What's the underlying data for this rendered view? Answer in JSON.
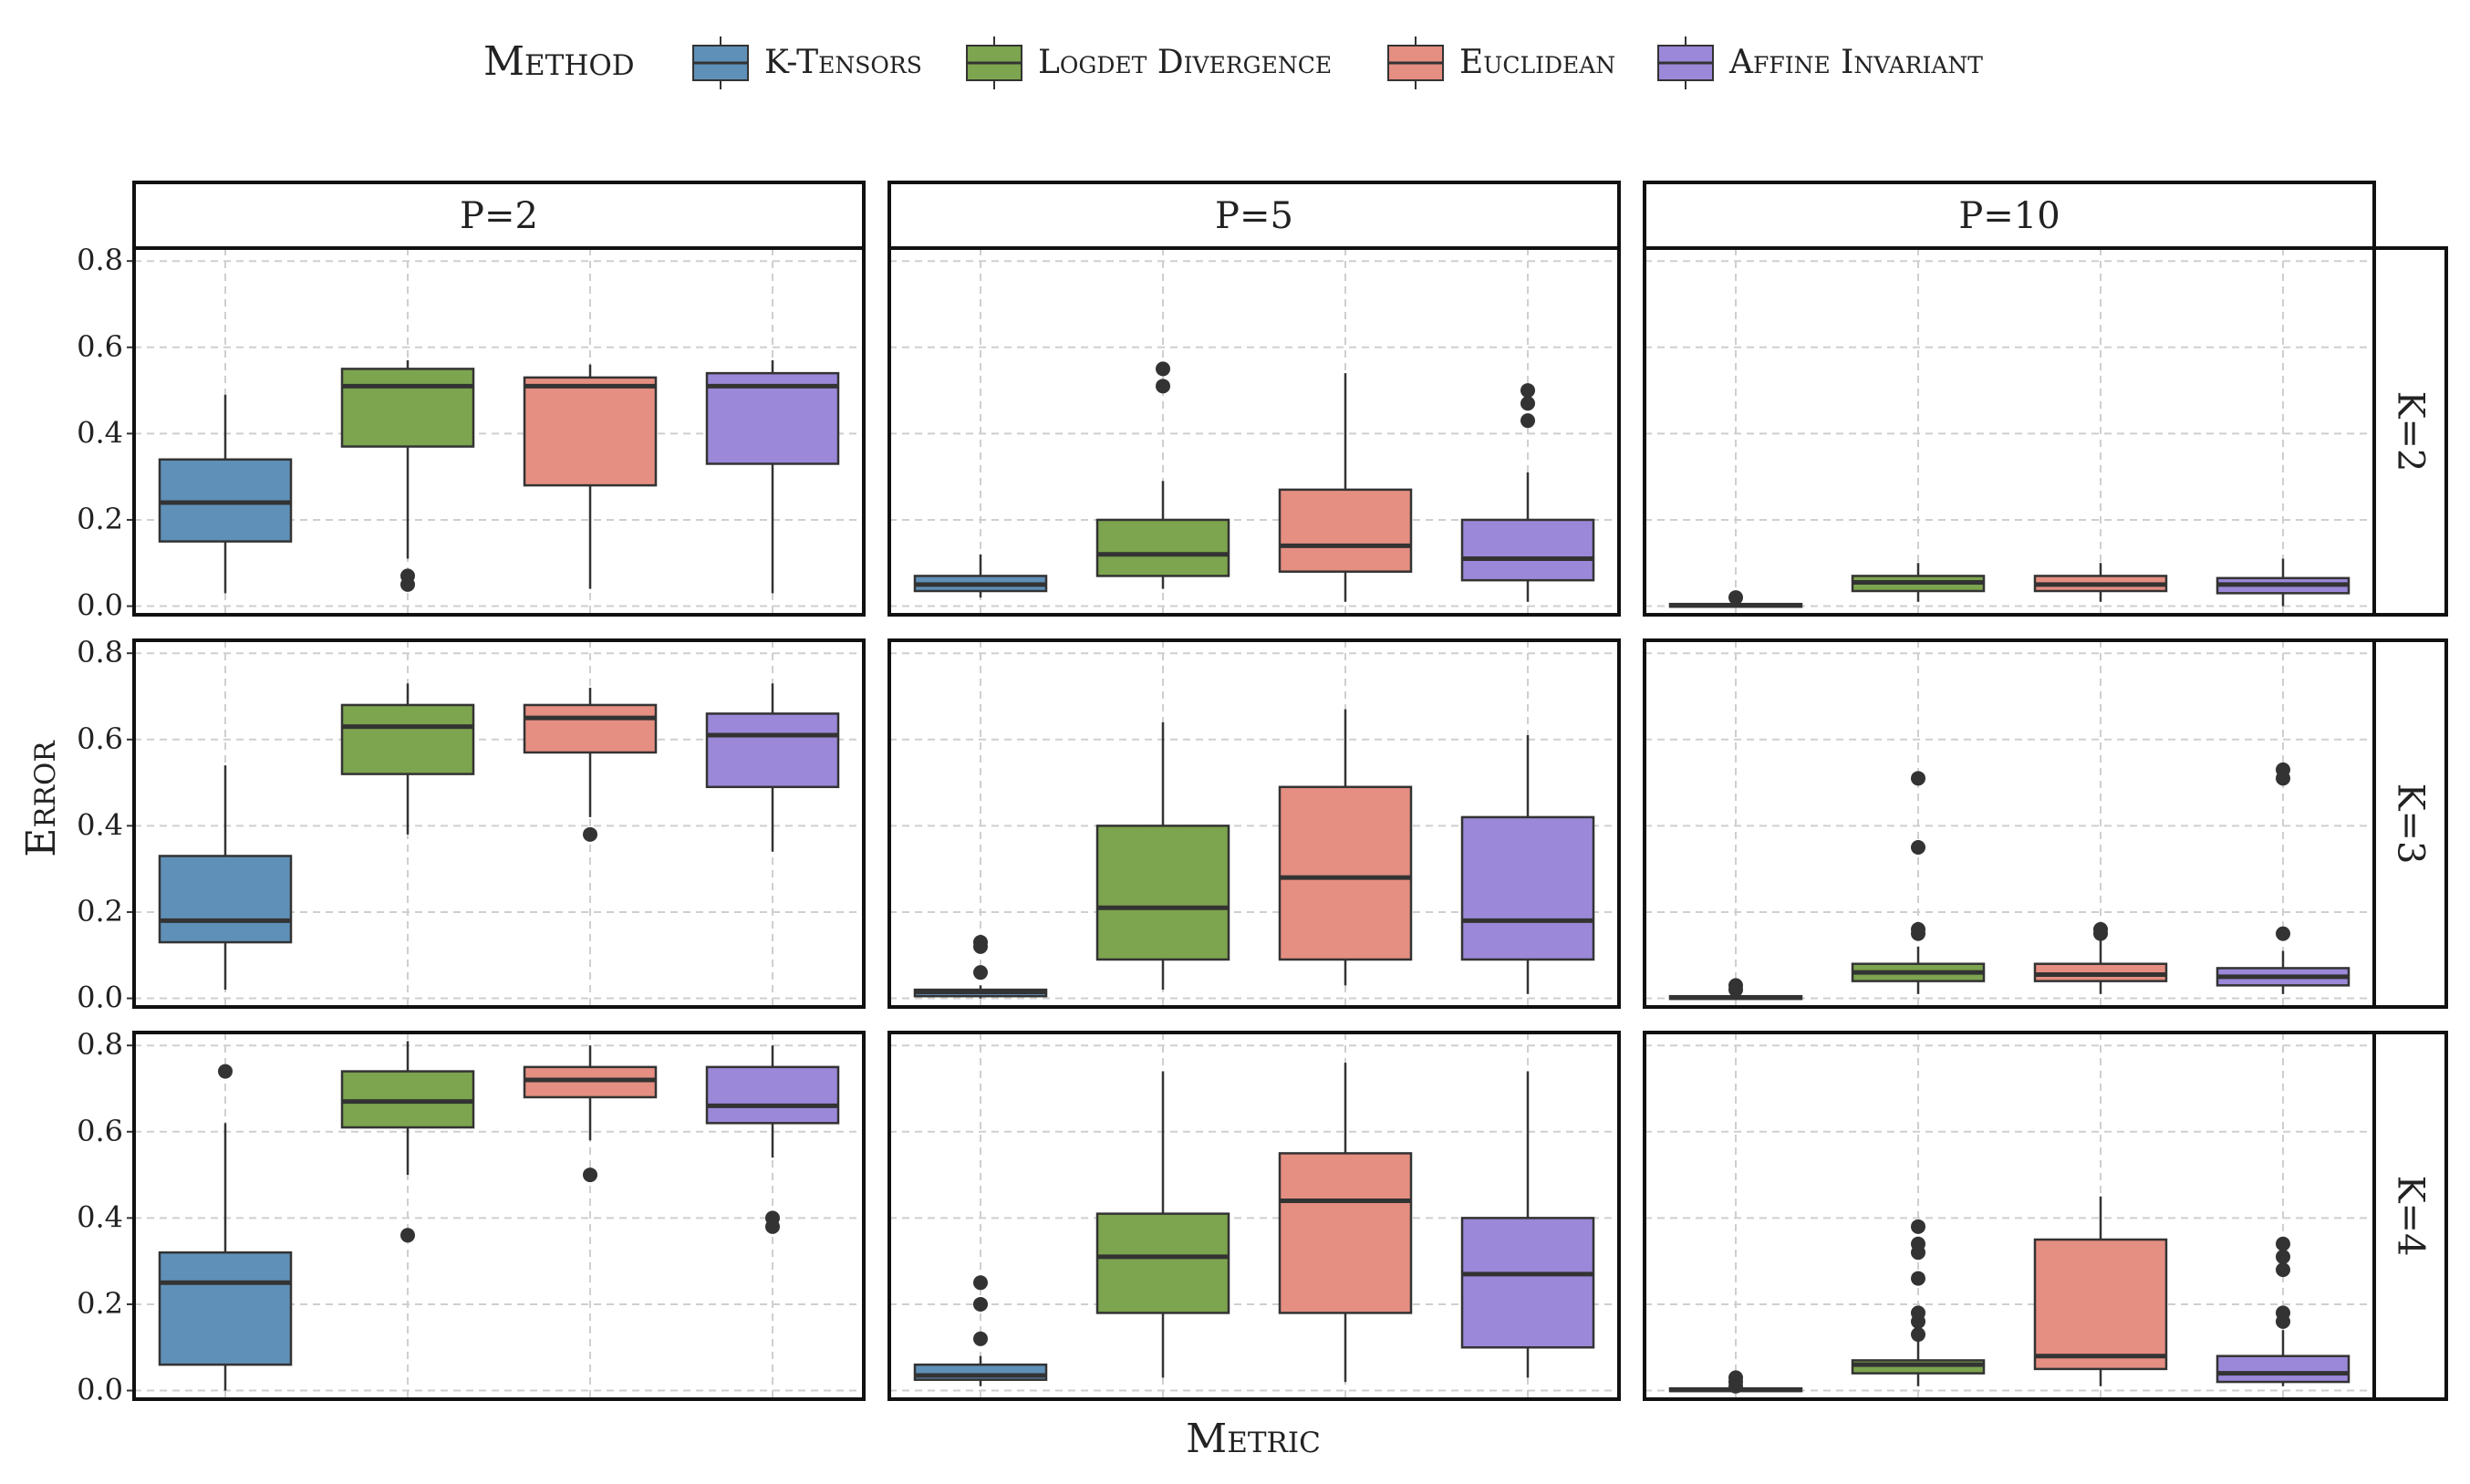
{
  "legend": {
    "title": "Method",
    "items": [
      {
        "label": "K-Tensors",
        "color": "#5f90b8"
      },
      {
        "label": "Logdet Divergence",
        "color": "#7da44e"
      },
      {
        "label": "Euclidean",
        "color": "#e58e82"
      },
      {
        "label": "Affine Invariant",
        "color": "#9b88d8"
      }
    ]
  },
  "chart_data": {
    "type": "box",
    "x_label": "Metric",
    "y_label": "Error",
    "column_facets": [
      "P=2",
      "P=5",
      "P=10"
    ],
    "row_facets": [
      "K=2",
      "K=3",
      "K=4"
    ],
    "ylim": [
      -0.02,
      0.83
    ],
    "y_ticks": [
      "0.0",
      "0.2",
      "0.4",
      "0.6",
      "0.8"
    ],
    "y_tick_values": [
      0.0,
      0.2,
      0.4,
      0.6,
      0.8
    ],
    "grid": true,
    "legend_position": "top",
    "methods": [
      "K-Tensors",
      "Logdet Divergence",
      "Euclidean",
      "Affine Invariant"
    ],
    "panels": [
      {
        "row": "K=2",
        "col": "P=2",
        "boxes": [
          {
            "method": "K-Tensors",
            "q1": 0.15,
            "median": 0.24,
            "q3": 0.34,
            "whisker_low": 0.03,
            "whisker_high": 0.49,
            "outliers": []
          },
          {
            "method": "Logdet Divergence",
            "q1": 0.37,
            "median": 0.51,
            "q3": 0.55,
            "whisker_low": 0.11,
            "whisker_high": 0.57,
            "outliers": [
              0.07,
              0.05
            ]
          },
          {
            "method": "Euclidean",
            "q1": 0.28,
            "median": 0.51,
            "q3": 0.53,
            "whisker_low": 0.04,
            "whisker_high": 0.56,
            "outliers": []
          },
          {
            "method": "Affine Invariant",
            "q1": 0.33,
            "median": 0.51,
            "q3": 0.54,
            "whisker_low": 0.03,
            "whisker_high": 0.57,
            "outliers": []
          }
        ]
      },
      {
        "row": "K=2",
        "col": "P=5",
        "boxes": [
          {
            "method": "K-Tensors",
            "q1": 0.035,
            "median": 0.05,
            "q3": 0.07,
            "whisker_low": 0.02,
            "whisker_high": 0.12,
            "outliers": []
          },
          {
            "method": "Logdet Divergence",
            "q1": 0.07,
            "median": 0.12,
            "q3": 0.2,
            "whisker_low": 0.04,
            "whisker_high": 0.29,
            "outliers": [
              0.55,
              0.51
            ]
          },
          {
            "method": "Euclidean",
            "q1": 0.08,
            "median": 0.14,
            "q3": 0.27,
            "whisker_low": 0.01,
            "whisker_high": 0.54,
            "outliers": []
          },
          {
            "method": "Affine Invariant",
            "q1": 0.06,
            "median": 0.11,
            "q3": 0.2,
            "whisker_low": 0.01,
            "whisker_high": 0.31,
            "outliers": [
              0.5,
              0.47,
              0.43
            ]
          }
        ]
      },
      {
        "row": "K=2",
        "col": "P=10",
        "boxes": [
          {
            "method": "K-Tensors",
            "q1": 0.0,
            "median": 0.002,
            "q3": 0.005,
            "whisker_low": 0.0,
            "whisker_high": 0.01,
            "outliers": [
              0.02
            ]
          },
          {
            "method": "Logdet Divergence",
            "q1": 0.035,
            "median": 0.055,
            "q3": 0.07,
            "whisker_low": 0.01,
            "whisker_high": 0.1,
            "outliers": []
          },
          {
            "method": "Euclidean",
            "q1": 0.035,
            "median": 0.05,
            "q3": 0.07,
            "whisker_low": 0.01,
            "whisker_high": 0.1,
            "outliers": []
          },
          {
            "method": "Affine Invariant",
            "q1": 0.03,
            "median": 0.05,
            "q3": 0.065,
            "whisker_low": 0.0,
            "whisker_high": 0.11,
            "outliers": []
          }
        ]
      },
      {
        "row": "K=3",
        "col": "P=2",
        "boxes": [
          {
            "method": "K-Tensors",
            "q1": 0.13,
            "median": 0.18,
            "q3": 0.33,
            "whisker_low": 0.02,
            "whisker_high": 0.54,
            "outliers": []
          },
          {
            "method": "Logdet Divergence",
            "q1": 0.52,
            "median": 0.63,
            "q3": 0.68,
            "whisker_low": 0.38,
            "whisker_high": 0.73,
            "outliers": []
          },
          {
            "method": "Euclidean",
            "q1": 0.57,
            "median": 0.65,
            "q3": 0.68,
            "whisker_low": 0.42,
            "whisker_high": 0.72,
            "outliers": [
              0.38
            ]
          },
          {
            "method": "Affine Invariant",
            "q1": 0.49,
            "median": 0.61,
            "q3": 0.66,
            "whisker_low": 0.34,
            "whisker_high": 0.73,
            "outliers": []
          }
        ]
      },
      {
        "row": "K=3",
        "col": "P=5",
        "boxes": [
          {
            "method": "K-Tensors",
            "q1": 0.005,
            "median": 0.015,
            "q3": 0.02,
            "whisker_low": 0.0,
            "whisker_high": 0.03,
            "outliers": [
              0.13,
              0.12,
              0.06
            ]
          },
          {
            "method": "Logdet Divergence",
            "q1": 0.09,
            "median": 0.21,
            "q3": 0.4,
            "whisker_low": 0.02,
            "whisker_high": 0.64,
            "outliers": []
          },
          {
            "method": "Euclidean",
            "q1": 0.09,
            "median": 0.28,
            "q3": 0.49,
            "whisker_low": 0.03,
            "whisker_high": 0.67,
            "outliers": []
          },
          {
            "method": "Affine Invariant",
            "q1": 0.09,
            "median": 0.18,
            "q3": 0.42,
            "whisker_low": 0.01,
            "whisker_high": 0.61,
            "outliers": []
          }
        ]
      },
      {
        "row": "K=3",
        "col": "P=10",
        "boxes": [
          {
            "method": "K-Tensors",
            "q1": 0.0,
            "median": 0.002,
            "q3": 0.005,
            "whisker_low": 0.0,
            "whisker_high": 0.01,
            "outliers": [
              0.03,
              0.02
            ]
          },
          {
            "method": "Logdet Divergence",
            "q1": 0.04,
            "median": 0.06,
            "q3": 0.08,
            "whisker_low": 0.01,
            "whisker_high": 0.12,
            "outliers": [
              0.51,
              0.35,
              0.16,
              0.15
            ]
          },
          {
            "method": "Euclidean",
            "q1": 0.04,
            "median": 0.055,
            "q3": 0.08,
            "whisker_low": 0.01,
            "whisker_high": 0.14,
            "outliers": [
              0.16,
              0.15
            ]
          },
          {
            "method": "Affine Invariant",
            "q1": 0.03,
            "median": 0.05,
            "q3": 0.07,
            "whisker_low": 0.01,
            "whisker_high": 0.11,
            "outliers": [
              0.53,
              0.51,
              0.15
            ]
          }
        ]
      },
      {
        "row": "K=4",
        "col": "P=2",
        "boxes": [
          {
            "method": "K-Tensors",
            "q1": 0.06,
            "median": 0.25,
            "q3": 0.32,
            "whisker_low": 0.0,
            "whisker_high": 0.62,
            "outliers": [
              0.74
            ]
          },
          {
            "method": "Logdet Divergence",
            "q1": 0.61,
            "median": 0.67,
            "q3": 0.74,
            "whisker_low": 0.5,
            "whisker_high": 0.81,
            "outliers": [
              0.36
            ]
          },
          {
            "method": "Euclidean",
            "q1": 0.68,
            "median": 0.72,
            "q3": 0.75,
            "whisker_low": 0.58,
            "whisker_high": 0.8,
            "outliers": [
              0.5
            ]
          },
          {
            "method": "Affine Invariant",
            "q1": 0.62,
            "median": 0.66,
            "q3": 0.75,
            "whisker_low": 0.54,
            "whisker_high": 0.8,
            "outliers": [
              0.4,
              0.38
            ]
          }
        ]
      },
      {
        "row": "K=4",
        "col": "P=5",
        "boxes": [
          {
            "method": "K-Tensors",
            "q1": 0.025,
            "median": 0.035,
            "q3": 0.06,
            "whisker_low": 0.01,
            "whisker_high": 0.08,
            "outliers": [
              0.25,
              0.2,
              0.12
            ]
          },
          {
            "method": "Logdet Divergence",
            "q1": 0.18,
            "median": 0.31,
            "q3": 0.41,
            "whisker_low": 0.03,
            "whisker_high": 0.74,
            "outliers": []
          },
          {
            "method": "Euclidean",
            "q1": 0.18,
            "median": 0.44,
            "q3": 0.55,
            "whisker_low": 0.02,
            "whisker_high": 0.76,
            "outliers": []
          },
          {
            "method": "Affine Invariant",
            "q1": 0.1,
            "median": 0.27,
            "q3": 0.4,
            "whisker_low": 0.03,
            "whisker_high": 0.74,
            "outliers": []
          }
        ]
      },
      {
        "row": "K=4",
        "col": "P=10",
        "boxes": [
          {
            "method": "K-Tensors",
            "q1": 0.0,
            "median": 0.002,
            "q3": 0.005,
            "whisker_low": 0.0,
            "whisker_high": 0.01,
            "outliers": [
              0.03,
              0.02,
              0.01
            ]
          },
          {
            "method": "Logdet Divergence",
            "q1": 0.04,
            "median": 0.06,
            "q3": 0.07,
            "whisker_low": 0.01,
            "whisker_high": 0.12,
            "outliers": [
              0.38,
              0.34,
              0.32,
              0.26,
              0.18,
              0.16,
              0.13
            ]
          },
          {
            "method": "Euclidean",
            "q1": 0.05,
            "median": 0.08,
            "q3": 0.35,
            "whisker_low": 0.01,
            "whisker_high": 0.45,
            "outliers": []
          },
          {
            "method": "Affine Invariant",
            "q1": 0.02,
            "median": 0.04,
            "q3": 0.08,
            "whisker_low": 0.01,
            "whisker_high": 0.14,
            "outliers": [
              0.34,
              0.31,
              0.28,
              0.18,
              0.16
            ]
          }
        ]
      }
    ]
  }
}
